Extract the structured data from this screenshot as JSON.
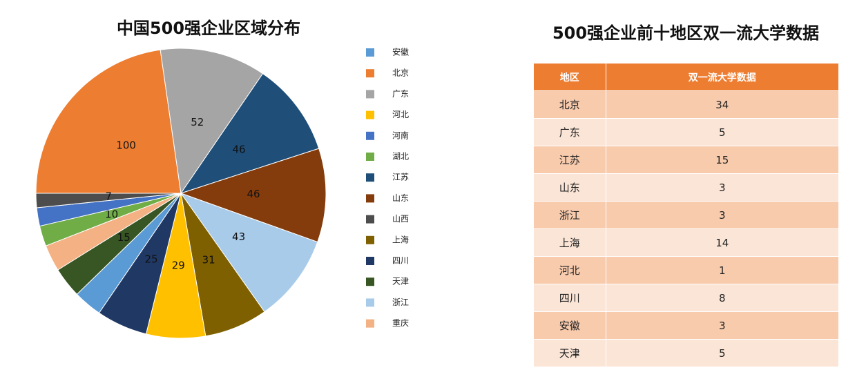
{
  "chart_data": {
    "type": "pie",
    "title": "中国500强企业区域分布",
    "values": [
      100,
      52,
      46,
      46,
      43,
      31,
      29,
      25,
      14,
      15,
      13,
      10,
      9,
      7
    ],
    "value_labels": [
      "100",
      "52",
      "46",
      "46",
      "43",
      "31",
      "29",
      "25",
      null,
      "15",
      null,
      "10",
      null,
      "7"
    ],
    "colors": [
      "#ed7d31",
      "#a5a5a5",
      "#1f4e79",
      "#843c0c",
      "#a9cbea",
      "#7f6000",
      "#ffc000",
      "#203864",
      "#5b9bd5",
      "#375623",
      "#f4b183",
      "#70ad47",
      "#4472c4",
      "#4d4d4d"
    ],
    "legend": [
      {
        "name": "安徽",
        "color": "#5b9bd5"
      },
      {
        "name": "北京",
        "color": "#ed7d31"
      },
      {
        "name": "广东",
        "color": "#a5a5a5"
      },
      {
        "name": "河北",
        "color": "#ffc000"
      },
      {
        "name": "河南",
        "color": "#4472c4"
      },
      {
        "name": "湖北",
        "color": "#70ad47"
      },
      {
        "name": "江苏",
        "color": "#1f4e79"
      },
      {
        "name": "山东",
        "color": "#843c0c"
      },
      {
        "name": "山西",
        "color": "#4d4d4d"
      },
      {
        "name": "上海",
        "color": "#7f6000"
      },
      {
        "name": "四川",
        "color": "#203864"
      },
      {
        "name": "天津",
        "color": "#375623"
      },
      {
        "name": "浙江",
        "color": "#a9cbea"
      },
      {
        "name": "重庆",
        "color": "#f4b183"
      }
    ]
  },
  "table": {
    "title": "500强企业前十地区双一流大学数据",
    "header": [
      "地区",
      "双一流大学数据"
    ],
    "rows": [
      [
        "北京",
        34
      ],
      [
        "广东",
        5
      ],
      [
        "江苏",
        15
      ],
      [
        "山东",
        3
      ],
      [
        "浙江",
        3
      ],
      [
        "上海",
        14
      ],
      [
        "河北",
        1
      ],
      [
        "四川",
        8
      ],
      [
        "安徽",
        3
      ],
      [
        "天津",
        5
      ]
    ]
  }
}
